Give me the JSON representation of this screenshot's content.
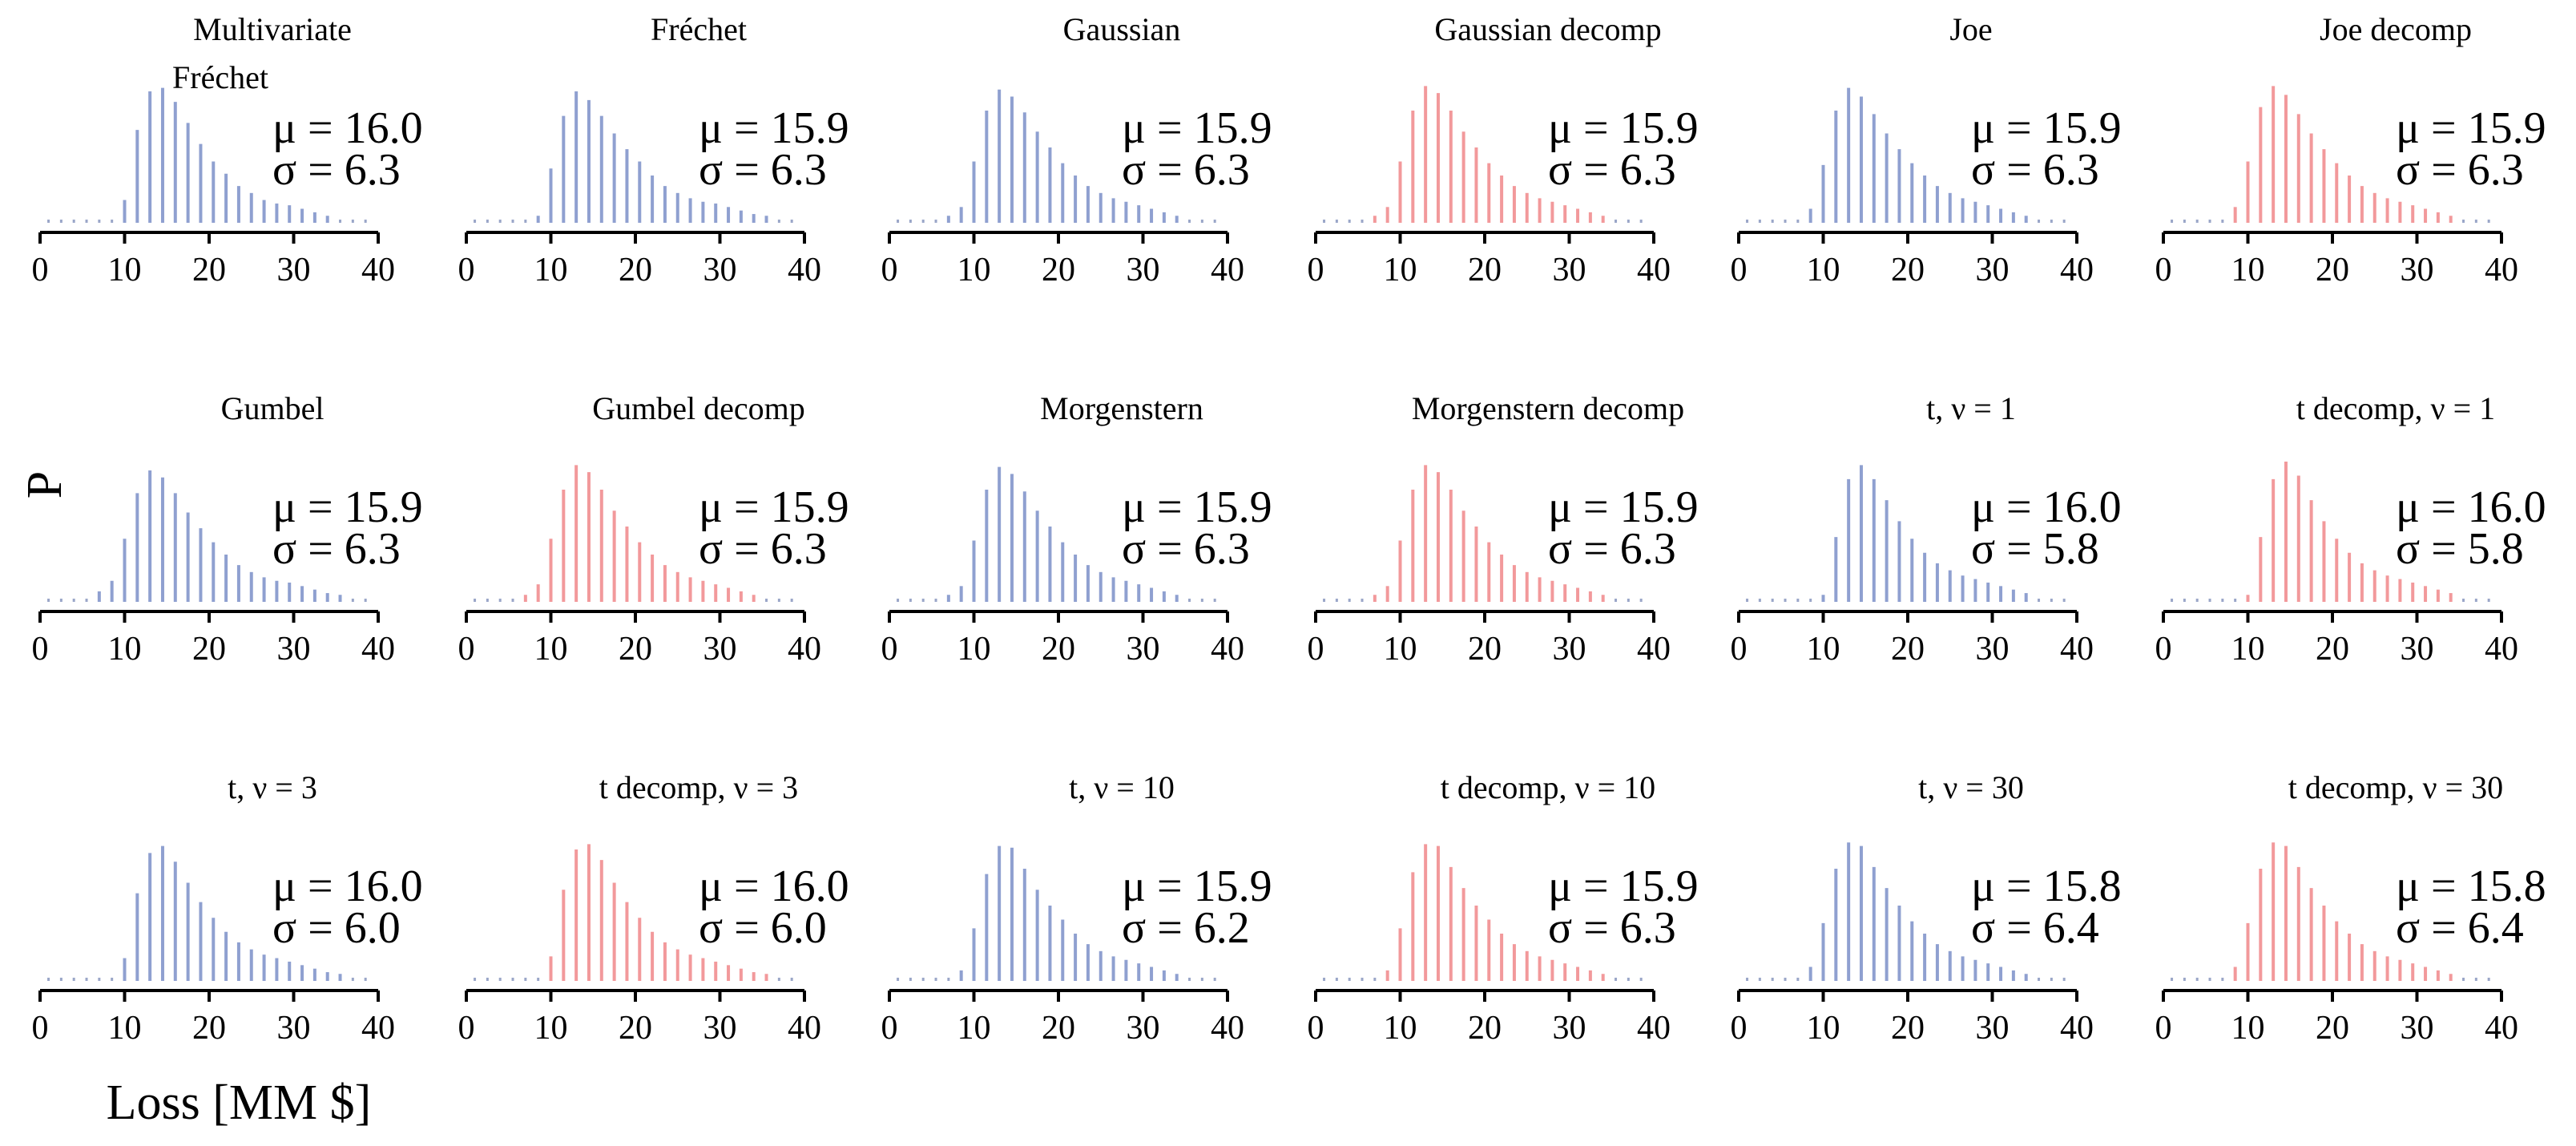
{
  "labels": {
    "xlabel": "Loss [MM $]",
    "ylabel": "P"
  },
  "colors": {
    "blue": "#8fa0d0",
    "red": "#f2999b",
    "dots": "#9aa6c8"
  },
  "chart_data": [
    {
      "type": "bar",
      "title": [
        "Multivariate",
        "Fréchet"
      ],
      "mu_label": "μ = 16.0",
      "sigma_label": "σ = 6.3",
      "color": "blue",
      "xlim": [
        0,
        40
      ],
      "ticks": [
        "0",
        "10",
        "20",
        "30",
        "40"
      ],
      "x_start": 1,
      "values": [
        0.0,
        0.0,
        0.0,
        0.001,
        0.001,
        0.002,
        0.013,
        0.053,
        0.075,
        0.077,
        0.069,
        0.057,
        0.045,
        0.035,
        0.028,
        0.021,
        0.017,
        0.013,
        0.011,
        0.01,
        0.008,
        0.006,
        0.004,
        0.003,
        0.002,
        0.001
      ]
    },
    {
      "type": "bar",
      "title": [
        "Fréchet"
      ],
      "mu_label": "μ = 15.9",
      "sigma_label": "σ = 6.3",
      "color": "blue",
      "xlim": [
        0,
        40
      ],
      "ticks": [
        "0",
        "10",
        "20",
        "30",
        "40"
      ],
      "x_start": 1,
      "values": [
        0.0,
        0.0,
        0.0,
        0.0,
        0.001,
        0.004,
        0.031,
        0.061,
        0.075,
        0.07,
        0.061,
        0.051,
        0.042,
        0.035,
        0.027,
        0.021,
        0.017,
        0.014,
        0.012,
        0.011,
        0.009,
        0.007,
        0.005,
        0.004,
        0.003,
        0.002
      ]
    },
    {
      "type": "bar",
      "title": [
        "Gaussian"
      ],
      "mu_label": "μ = 15.9",
      "sigma_label": "σ = 6.3",
      "color": "blue",
      "xlim": [
        0,
        40
      ],
      "ticks": [
        "0",
        "10",
        "20",
        "30",
        "40"
      ],
      "x_start": 1,
      "values": [
        0.0,
        0.0,
        0.001,
        0.002,
        0.004,
        0.009,
        0.035,
        0.064,
        0.076,
        0.072,
        0.063,
        0.052,
        0.043,
        0.034,
        0.027,
        0.021,
        0.017,
        0.014,
        0.012,
        0.01,
        0.008,
        0.006,
        0.004,
        0.003,
        0.002,
        0.001
      ]
    },
    {
      "type": "bar",
      "title": [
        "Gaussian decomp"
      ],
      "mu_label": "μ = 15.9",
      "sigma_label": "σ = 6.3",
      "color": "red",
      "xlim": [
        0,
        40
      ],
      "ticks": [
        "0",
        "10",
        "20",
        "30",
        "40"
      ],
      "x_start": 1,
      "values": [
        0.0,
        0.0,
        0.001,
        0.002,
        0.004,
        0.009,
        0.035,
        0.064,
        0.078,
        0.074,
        0.064,
        0.052,
        0.043,
        0.034,
        0.027,
        0.021,
        0.017,
        0.014,
        0.012,
        0.01,
        0.008,
        0.006,
        0.004,
        0.003,
        0.002,
        0.001
      ]
    },
    {
      "type": "bar",
      "title": [
        "Joe"
      ],
      "mu_label": "μ = 15.9",
      "sigma_label": "σ = 6.3",
      "color": "blue",
      "xlim": [
        0,
        40
      ],
      "ticks": [
        "0",
        "10",
        "20",
        "30",
        "40"
      ],
      "x_start": 1,
      "values": [
        0.0,
        0.0,
        0.0,
        0.001,
        0.003,
        0.008,
        0.033,
        0.064,
        0.077,
        0.072,
        0.062,
        0.051,
        0.042,
        0.034,
        0.027,
        0.021,
        0.017,
        0.014,
        0.012,
        0.01,
        0.008,
        0.006,
        0.004,
        0.003,
        0.002,
        0.001
      ]
    },
    {
      "type": "bar",
      "title": [
        "Joe decomp"
      ],
      "mu_label": "μ = 15.9",
      "sigma_label": "σ = 6.3",
      "color": "red",
      "xlim": [
        0,
        40
      ],
      "ticks": [
        "0",
        "10",
        "20",
        "30",
        "40"
      ],
      "x_start": 1,
      "values": [
        0.0,
        0.0,
        0.0,
        0.001,
        0.003,
        0.009,
        0.035,
        0.066,
        0.078,
        0.073,
        0.062,
        0.051,
        0.042,
        0.034,
        0.027,
        0.021,
        0.017,
        0.014,
        0.012,
        0.01,
        0.008,
        0.006,
        0.004,
        0.003,
        0.002,
        0.001
      ]
    },
    {
      "type": "bar",
      "title": [
        "Gumbel"
      ],
      "mu_label": "μ = 15.9",
      "sigma_label": "σ = 6.3",
      "color": "blue",
      "xlim": [
        0,
        40
      ],
      "ticks": [
        "0",
        "10",
        "20",
        "30",
        "40"
      ],
      "x_start": 1,
      "values": [
        0.0,
        0.001,
        0.002,
        0.003,
        0.006,
        0.012,
        0.036,
        0.062,
        0.075,
        0.071,
        0.062,
        0.051,
        0.042,
        0.034,
        0.027,
        0.021,
        0.017,
        0.014,
        0.012,
        0.011,
        0.009,
        0.007,
        0.005,
        0.004,
        0.003,
        0.002
      ]
    },
    {
      "type": "bar",
      "title": [
        "Gumbel decomp"
      ],
      "mu_label": "μ = 15.9",
      "sigma_label": "σ = 6.3",
      "color": "red",
      "xlim": [
        0,
        40
      ],
      "ticks": [
        "0",
        "10",
        "20",
        "30",
        "40"
      ],
      "x_start": 1,
      "values": [
        0.0,
        0.0,
        0.001,
        0.002,
        0.004,
        0.01,
        0.036,
        0.064,
        0.078,
        0.074,
        0.064,
        0.052,
        0.043,
        0.034,
        0.027,
        0.021,
        0.017,
        0.014,
        0.012,
        0.01,
        0.008,
        0.006,
        0.004,
        0.003,
        0.002,
        0.001
      ]
    },
    {
      "type": "bar",
      "title": [
        "Morgenstern"
      ],
      "mu_label": "μ = 15.9",
      "sigma_label": "σ = 6.3",
      "color": "blue",
      "xlim": [
        0,
        40
      ],
      "ticks": [
        "0",
        "10",
        "20",
        "30",
        "40"
      ],
      "x_start": 1,
      "values": [
        0.0,
        0.0,
        0.001,
        0.002,
        0.004,
        0.009,
        0.035,
        0.064,
        0.077,
        0.073,
        0.063,
        0.052,
        0.043,
        0.034,
        0.027,
        0.021,
        0.017,
        0.014,
        0.012,
        0.01,
        0.008,
        0.006,
        0.004,
        0.003,
        0.002,
        0.001
      ]
    },
    {
      "type": "bar",
      "title": [
        "Morgenstern decomp"
      ],
      "mu_label": "μ = 15.9",
      "sigma_label": "σ = 6.3",
      "color": "red",
      "xlim": [
        0,
        40
      ],
      "ticks": [
        "0",
        "10",
        "20",
        "30",
        "40"
      ],
      "x_start": 1,
      "values": [
        0.0,
        0.0,
        0.001,
        0.002,
        0.004,
        0.009,
        0.035,
        0.064,
        0.078,
        0.074,
        0.064,
        0.052,
        0.043,
        0.034,
        0.027,
        0.021,
        0.017,
        0.014,
        0.012,
        0.01,
        0.008,
        0.006,
        0.004,
        0.003,
        0.002,
        0.001
      ]
    },
    {
      "type": "bar",
      "title": [
        "t, ν = 1"
      ],
      "mu_label": "μ = 16.0",
      "sigma_label": "σ = 5.8",
      "color": "blue",
      "xlim": [
        0,
        40
      ],
      "ticks": [
        "0",
        "10",
        "20",
        "30",
        "40"
      ],
      "x_start": 1,
      "values": [
        0.0,
        0.0,
        0.0,
        0.0,
        0.0,
        0.0,
        0.004,
        0.037,
        0.07,
        0.078,
        0.07,
        0.058,
        0.046,
        0.036,
        0.028,
        0.022,
        0.018,
        0.015,
        0.013,
        0.011,
        0.009,
        0.007,
        0.005,
        0.003,
        0.002,
        0.001
      ]
    },
    {
      "type": "bar",
      "title": [
        "t decomp, ν = 1"
      ],
      "mu_label": "μ = 16.0",
      "sigma_label": "σ = 5.8",
      "color": "red",
      "xlim": [
        0,
        40
      ],
      "ticks": [
        "0",
        "10",
        "20",
        "30",
        "40"
      ],
      "x_start": 1,
      "values": [
        0.0,
        0.0,
        0.0,
        0.0,
        0.0,
        0.0,
        0.004,
        0.037,
        0.07,
        0.08,
        0.072,
        0.058,
        0.046,
        0.036,
        0.028,
        0.022,
        0.018,
        0.015,
        0.013,
        0.011,
        0.009,
        0.007,
        0.005,
        0.003,
        0.002,
        0.001
      ]
    },
    {
      "type": "bar",
      "title": [
        "t, ν = 3"
      ],
      "mu_label": "μ = 16.0",
      "sigma_label": "σ = 6.0",
      "color": "blue",
      "xlim": [
        0,
        40
      ],
      "ticks": [
        "0",
        "10",
        "20",
        "30",
        "40"
      ],
      "x_start": 1,
      "values": [
        0.0,
        0.0,
        0.0,
        0.0,
        0.0,
        0.001,
        0.013,
        0.05,
        0.073,
        0.077,
        0.068,
        0.056,
        0.045,
        0.036,
        0.028,
        0.022,
        0.018,
        0.015,
        0.013,
        0.011,
        0.009,
        0.007,
        0.005,
        0.004,
        0.003,
        0.002
      ]
    },
    {
      "type": "bar",
      "title": [
        "t decomp, ν = 3"
      ],
      "mu_label": "μ = 16.0",
      "sigma_label": "σ = 6.0",
      "color": "red",
      "xlim": [
        0,
        40
      ],
      "ticks": [
        "0",
        "10",
        "20",
        "30",
        "40"
      ],
      "x_start": 1,
      "values": [
        0.0,
        0.0,
        0.0,
        0.0,
        0.0,
        0.001,
        0.014,
        0.052,
        0.075,
        0.078,
        0.069,
        0.056,
        0.045,
        0.036,
        0.028,
        0.022,
        0.018,
        0.015,
        0.013,
        0.011,
        0.009,
        0.007,
        0.005,
        0.004,
        0.003,
        0.002
      ]
    },
    {
      "type": "bar",
      "title": [
        "t, ν = 10"
      ],
      "mu_label": "μ = 15.9",
      "sigma_label": "σ = 6.2",
      "color": "blue",
      "xlim": [
        0,
        40
      ],
      "ticks": [
        "0",
        "10",
        "20",
        "30",
        "40"
      ],
      "x_start": 1,
      "values": [
        0.0,
        0.0,
        0.0,
        0.001,
        0.002,
        0.006,
        0.03,
        0.061,
        0.077,
        0.076,
        0.064,
        0.052,
        0.043,
        0.035,
        0.027,
        0.021,
        0.017,
        0.014,
        0.012,
        0.01,
        0.008,
        0.006,
        0.004,
        0.003,
        0.002,
        0.001
      ]
    },
    {
      "type": "bar",
      "title": [
        "t decomp, ν = 10"
      ],
      "mu_label": "μ = 15.9",
      "sigma_label": "σ = 6.3",
      "color": "red",
      "xlim": [
        0,
        40
      ],
      "ticks": [
        "0",
        "10",
        "20",
        "30",
        "40"
      ],
      "x_start": 1,
      "values": [
        0.0,
        0.0,
        0.0,
        0.001,
        0.002,
        0.006,
        0.03,
        0.062,
        0.078,
        0.077,
        0.065,
        0.053,
        0.043,
        0.035,
        0.027,
        0.021,
        0.017,
        0.014,
        0.012,
        0.01,
        0.008,
        0.006,
        0.004,
        0.003,
        0.002,
        0.001
      ]
    },
    {
      "type": "bar",
      "title": [
        "t, ν = 30"
      ],
      "mu_label": "μ = 15.8",
      "sigma_label": "σ = 6.4",
      "color": "blue",
      "xlim": [
        0,
        40
      ],
      "ticks": [
        "0",
        "10",
        "20",
        "30",
        "40"
      ],
      "x_start": 1,
      "values": [
        0.0,
        0.0,
        0.0,
        0.001,
        0.003,
        0.008,
        0.033,
        0.064,
        0.079,
        0.077,
        0.065,
        0.053,
        0.043,
        0.034,
        0.027,
        0.021,
        0.017,
        0.014,
        0.012,
        0.01,
        0.008,
        0.006,
        0.004,
        0.003,
        0.002,
        0.001
      ]
    },
    {
      "type": "bar",
      "title": [
        "t decomp, ν = 30"
      ],
      "mu_label": "μ = 15.8",
      "sigma_label": "σ = 6.4",
      "color": "red",
      "xlim": [
        0,
        40
      ],
      "ticks": [
        "0",
        "10",
        "20",
        "30",
        "40"
      ],
      "x_start": 1,
      "values": [
        0.0,
        0.0,
        0.0,
        0.001,
        0.003,
        0.008,
        0.033,
        0.064,
        0.079,
        0.077,
        0.065,
        0.053,
        0.043,
        0.034,
        0.027,
        0.021,
        0.017,
        0.014,
        0.012,
        0.01,
        0.008,
        0.006,
        0.004,
        0.003,
        0.002,
        0.001
      ]
    }
  ]
}
